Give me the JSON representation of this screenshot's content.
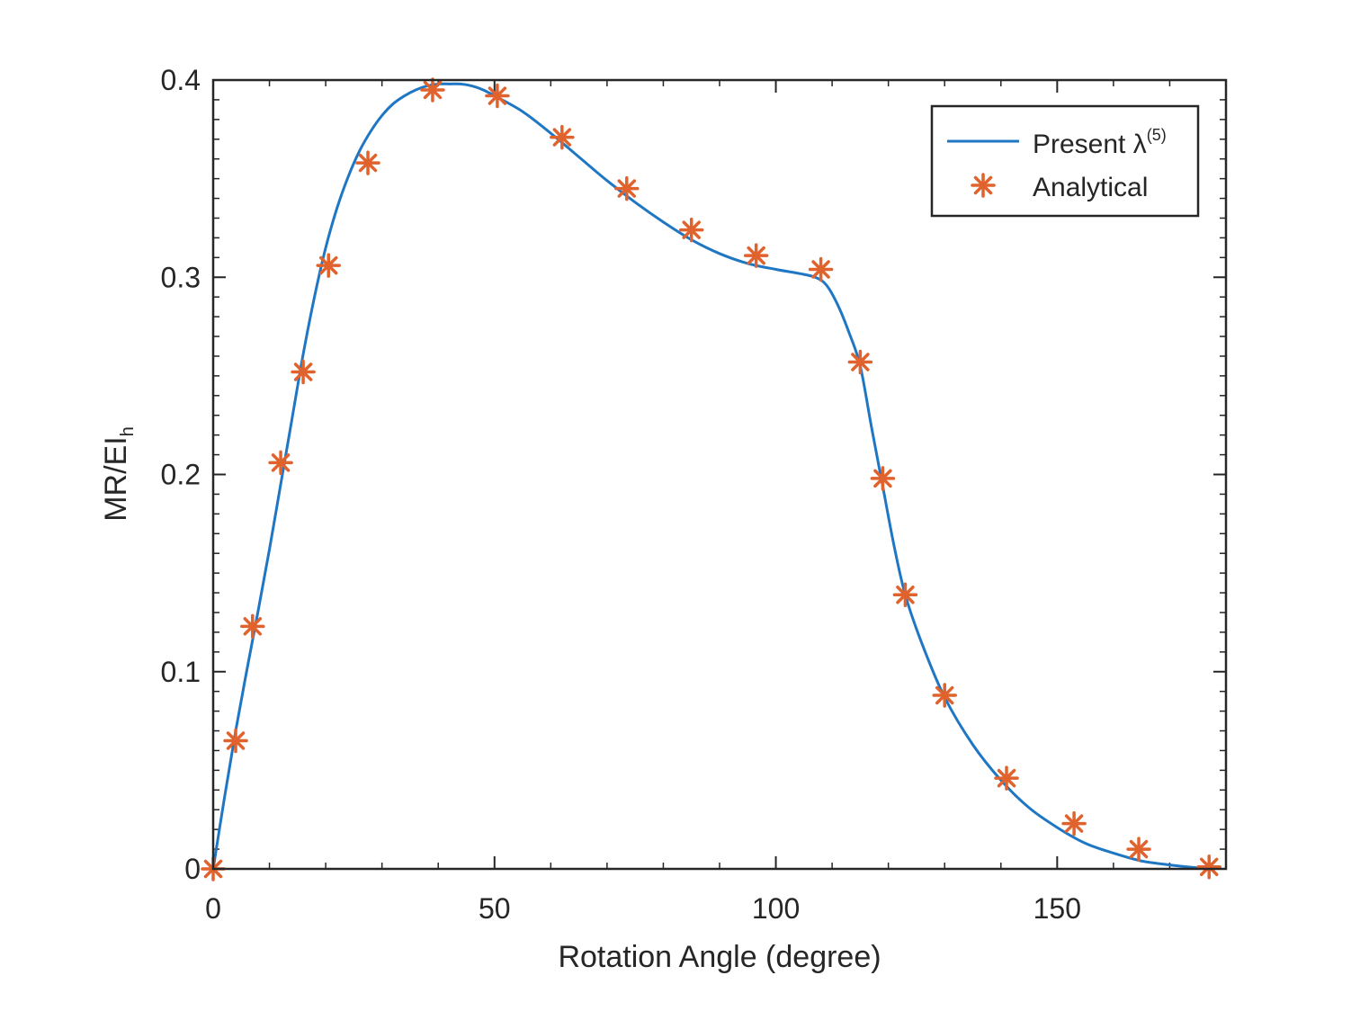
{
  "chart_data": {
    "type": "line",
    "xlabel": "Rotation Angle (degree)",
    "ylabel_main": "MR/EI",
    "ylabel_sub": "h",
    "xlim": [
      0,
      180
    ],
    "ylim": [
      0,
      0.4
    ],
    "xticks": [
      0,
      50,
      100,
      150
    ],
    "xtick_labels": [
      "0",
      "50",
      "100",
      "150"
    ],
    "yticks": [
      0,
      0.1,
      0.2,
      0.3,
      0.4
    ],
    "ytick_labels": [
      "0",
      "0.1",
      "0.2",
      "0.3",
      "0.4"
    ],
    "grid": false,
    "legend_position": "top-right",
    "series": [
      {
        "name": "Present λ",
        "name_sup": "(5)",
        "style": "line",
        "color": "#1f77c4",
        "x": [
          0,
          2,
          4,
          6,
          8,
          10,
          12,
          14,
          16,
          18,
          20,
          22,
          24,
          26,
          28,
          30,
          32,
          34,
          36,
          38,
          40,
          42,
          44,
          46,
          48,
          50,
          55,
          60,
          65,
          70,
          75,
          80,
          85,
          90,
          95,
          100,
          104,
          107,
          109,
          111,
          113,
          115,
          117,
          119,
          121,
          123,
          126,
          130,
          135,
          140,
          145,
          150,
          155,
          160,
          165,
          170,
          175,
          178
        ],
        "y": [
          0,
          0.036,
          0.07,
          0.101,
          0.131,
          0.162,
          0.195,
          0.228,
          0.261,
          0.29,
          0.315,
          0.335,
          0.351,
          0.364,
          0.374,
          0.382,
          0.388,
          0.392,
          0.395,
          0.397,
          0.398,
          0.398,
          0.398,
          0.397,
          0.395,
          0.392,
          0.384,
          0.373,
          0.361,
          0.349,
          0.338,
          0.328,
          0.319,
          0.312,
          0.307,
          0.304,
          0.302,
          0.3,
          0.296,
          0.286,
          0.272,
          0.255,
          0.224,
          0.194,
          0.164,
          0.139,
          0.114,
          0.087,
          0.063,
          0.045,
          0.031,
          0.021,
          0.013,
          0.008,
          0.004,
          0.002,
          0.0005,
          0
        ]
      },
      {
        "name": "Analytical",
        "style": "marker",
        "color": "#e0622d",
        "x": [
          0,
          4,
          7,
          12,
          16,
          20.5,
          27.5,
          39,
          50.5,
          62,
          73.5,
          85,
          96.5,
          108,
          115,
          119,
          123,
          130,
          141,
          153,
          164.5,
          177
        ],
        "y": [
          0,
          0.065,
          0.123,
          0.206,
          0.252,
          0.306,
          0.358,
          0.395,
          0.392,
          0.371,
          0.345,
          0.324,
          0.311,
          0.304,
          0.257,
          0.198,
          0.139,
          0.088,
          0.046,
          0.023,
          0.01,
          0.001
        ]
      }
    ]
  }
}
